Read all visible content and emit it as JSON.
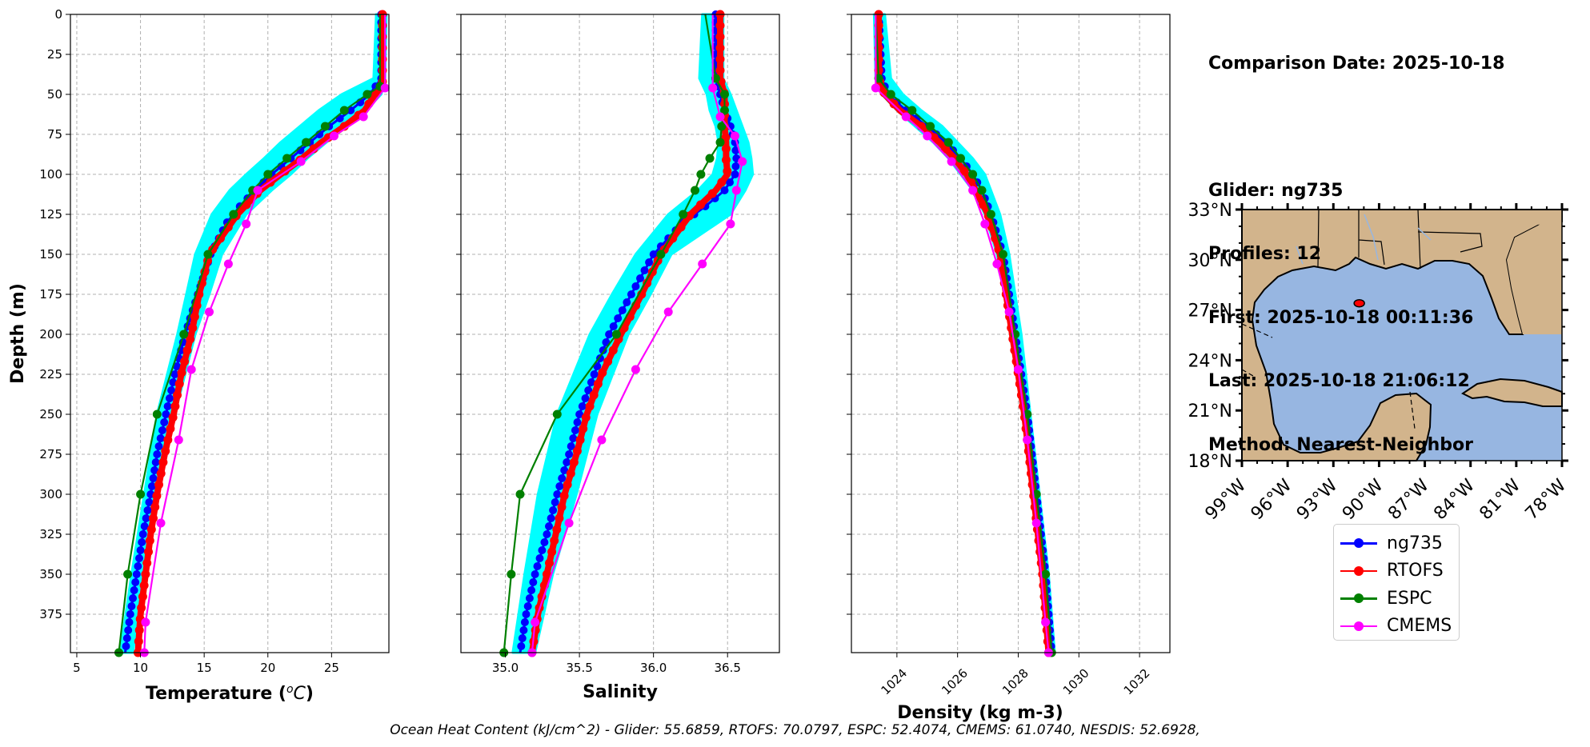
{
  "info": {
    "comparison_date": "Comparison Date: 2025-10-18",
    "glider": "Glider: ng735",
    "profiles": "Profiles: 12",
    "first": "First: 2025-10-18 00:11:36",
    "last": "Last: 2025-10-18 21:06:12",
    "method": "Method: Nearest-Neighbor"
  },
  "footer": "Ocean Heat Content (kJ/cm^2) - Glider: 55.6859,  RTOFS: 70.0797,  ESPC: 52.4074,  CMEMS: 61.0740,  NESDIS: 52.6928,",
  "legend": [
    {
      "name": "ng735",
      "color": "#0000ff"
    },
    {
      "name": "RTOFS",
      "color": "#ff0000"
    },
    {
      "name": "ESPC",
      "color": "#008000"
    },
    {
      "name": "CMEMS",
      "color": "#ff00ff"
    }
  ],
  "chart_data": [
    {
      "type": "line",
      "ylabel": "Depth (m)",
      "xlabel": "Temperature ($^oC$)",
      "xlabel_display": "Temperature (",
      "xlabel_unit": "oC",
      "xlim": [
        4.5,
        29.5
      ],
      "ylim": [
        399,
        0
      ],
      "xticks": [
        5,
        10,
        15,
        20,
        25
      ],
      "yticks": [
        0,
        25,
        50,
        75,
        100,
        125,
        150,
        175,
        200,
        225,
        250,
        275,
        300,
        325,
        350,
        375
      ],
      "grid": true,
      "series": [
        {
          "name": "ng735",
          "color": "#0000ff",
          "depth": [
            0,
            40,
            50,
            60,
            70,
            80,
            90,
            100,
            110,
            120,
            130,
            150,
            175,
            200,
            225,
            250,
            275,
            300,
            325,
            350,
            375,
            399
          ],
          "values": [
            28.9,
            28.9,
            28.0,
            26.5,
            24.8,
            23.3,
            21.8,
            20.3,
            19.0,
            17.8,
            16.8,
            15.5,
            14.5,
            13.5,
            12.7,
            12.0,
            11.3,
            10.8,
            10.2,
            9.7,
            9.2,
            8.8
          ]
        },
        {
          "name": "RTOFS",
          "color": "#ff0000",
          "depth": [
            0,
            45,
            50,
            60,
            70,
            80,
            90,
            100,
            110,
            125,
            150,
            175,
            200,
            225,
            250,
            275,
            300,
            325,
            350,
            375,
            399
          ],
          "values": [
            29.0,
            29.0,
            28.4,
            27.6,
            26.0,
            24.2,
            22.7,
            21.0,
            19.4,
            17.6,
            15.4,
            14.6,
            14.0,
            13.2,
            12.6,
            11.9,
            11.3,
            10.8,
            10.4,
            10.0,
            9.8
          ]
        },
        {
          "name": "ESPC",
          "color": "#008000",
          "depth": [
            0,
            45,
            50,
            60,
            70,
            80,
            90,
            100,
            110,
            125,
            150,
            200,
            250,
            300,
            350,
            399
          ],
          "values": [
            28.8,
            28.8,
            27.8,
            26.0,
            24.5,
            23.0,
            21.5,
            20.0,
            18.8,
            17.3,
            15.3,
            13.4,
            11.3,
            10.0,
            9.0,
            8.3
          ]
        },
        {
          "name": "CMEMS",
          "color": "#ff00ff",
          "depth": [
            0,
            46,
            64,
            76,
            92,
            110,
            131,
            156,
            186,
            222,
            266,
            318,
            380,
            399
          ],
          "values": [
            29.2,
            29.2,
            27.5,
            25.2,
            22.6,
            19.2,
            18.3,
            16.9,
            15.4,
            14.0,
            13.0,
            11.6,
            10.4,
            10.3
          ]
        }
      ],
      "glider_spread": {
        "color": "#00ffff",
        "depth": [
          0,
          40,
          50,
          60,
          70,
          80,
          90,
          100,
          110,
          125,
          150,
          175,
          200,
          250,
          300,
          350,
          399
        ],
        "lo": [
          28.5,
          28.3,
          25.8,
          24.0,
          22.5,
          21.0,
          19.7,
          18.3,
          17.0,
          15.6,
          14.3,
          13.6,
          12.9,
          11.3,
          10.3,
          9.3,
          8.4
        ],
        "hi": [
          29.3,
          29.2,
          28.9,
          27.7,
          26.2,
          24.6,
          23.1,
          21.8,
          20.3,
          18.3,
          16.4,
          15.4,
          14.3,
          12.7,
          11.4,
          10.3,
          9.4
        ]
      }
    },
    {
      "type": "line",
      "xlabel": "Salinity",
      "xlim": [
        34.7,
        36.85
      ],
      "ylim": [
        399,
        0
      ],
      "xticks": [
        35.0,
        35.5,
        36.0,
        36.5
      ],
      "xtick_labels": [
        "35.0",
        "35.5",
        "36.0",
        "36.5"
      ],
      "grid": true,
      "series": [
        {
          "name": "ng735",
          "color": "#0000ff",
          "depth": [
            0,
            40,
            50,
            60,
            70,
            80,
            90,
            100,
            110,
            120,
            130,
            150,
            175,
            200,
            225,
            250,
            275,
            300,
            325,
            350,
            375,
            399
          ],
          "values": [
            36.42,
            36.42,
            36.45,
            36.48,
            36.52,
            36.55,
            36.56,
            36.55,
            36.48,
            36.35,
            36.2,
            36.0,
            35.85,
            35.7,
            35.6,
            35.5,
            35.43,
            35.35,
            35.28,
            35.2,
            35.14,
            35.1
          ]
        },
        {
          "name": "RTOFS",
          "color": "#ff0000",
          "depth": [
            0,
            40,
            50,
            60,
            70,
            80,
            90,
            100,
            110,
            125,
            150,
            175,
            200,
            225,
            250,
            275,
            300,
            325,
            350,
            375,
            399
          ],
          "values": [
            36.45,
            36.45,
            36.48,
            36.48,
            36.48,
            36.49,
            36.49,
            36.5,
            36.42,
            36.25,
            36.05,
            35.92,
            35.78,
            35.65,
            35.55,
            35.48,
            35.4,
            35.34,
            35.28,
            35.22,
            35.18
          ]
        },
        {
          "name": "ESPC",
          "color": "#008000",
          "depth": [
            0,
            40,
            50,
            60,
            70,
            80,
            90,
            100,
            110,
            125,
            150,
            200,
            250,
            300,
            350,
            399
          ],
          "values": [
            36.35,
            36.42,
            36.48,
            36.48,
            36.46,
            36.45,
            36.38,
            36.32,
            36.28,
            36.2,
            36.05,
            35.75,
            35.35,
            35.1,
            35.04,
            34.99
          ]
        },
        {
          "name": "CMEMS",
          "color": "#ff00ff",
          "depth": [
            0,
            46,
            64,
            76,
            92,
            110,
            131,
            156,
            186,
            222,
            266,
            318,
            380,
            399
          ],
          "values": [
            36.4,
            36.4,
            36.45,
            36.55,
            36.6,
            36.56,
            36.52,
            36.33,
            36.1,
            35.88,
            35.65,
            35.43,
            35.2,
            35.18
          ]
        }
      ],
      "glider_spread": {
        "color": "#00ffff",
        "depth": [
          0,
          40,
          50,
          60,
          70,
          80,
          90,
          100,
          110,
          125,
          150,
          175,
          200,
          250,
          300,
          350,
          399
        ],
        "lo": [
          36.33,
          36.31,
          36.36,
          36.38,
          36.42,
          36.44,
          36.43,
          36.4,
          36.3,
          36.1,
          35.88,
          35.72,
          35.57,
          35.35,
          35.22,
          35.13,
          35.05
        ],
        "hi": [
          36.47,
          36.47,
          36.52,
          36.56,
          36.6,
          36.64,
          36.66,
          36.67,
          36.62,
          36.52,
          36.12,
          35.98,
          35.83,
          35.62,
          35.48,
          35.32,
          35.2
        ]
      }
    },
    {
      "type": "line",
      "xlabel": "Density (kg m-3)",
      "xlim": [
        1022.5,
        1033.0
      ],
      "ylim": [
        399,
        0
      ],
      "xticks": [
        1024,
        1026,
        1028,
        1030,
        1032
      ],
      "xtick_labels": [
        "1024",
        "1026",
        "1028",
        "1030",
        "1032"
      ],
      "grid": true,
      "series": [
        {
          "name": "ng735",
          "color": "#0000ff",
          "depth": [
            0,
            40,
            50,
            60,
            70,
            80,
            90,
            100,
            110,
            125,
            150,
            175,
            200,
            250,
            300,
            350,
            399
          ],
          "values": [
            1023.4,
            1023.5,
            1023.7,
            1024.3,
            1025.0,
            1025.6,
            1026.1,
            1026.5,
            1026.8,
            1027.1,
            1027.5,
            1027.7,
            1027.9,
            1028.3,
            1028.6,
            1028.9,
            1029.1
          ]
        },
        {
          "name": "RTOFS",
          "color": "#ff0000",
          "depth": [
            0,
            40,
            50,
            60,
            70,
            80,
            90,
            100,
            110,
            125,
            150,
            175,
            200,
            250,
            300,
            350,
            399
          ],
          "values": [
            1023.4,
            1023.4,
            1023.6,
            1024.1,
            1024.8,
            1025.4,
            1025.9,
            1026.3,
            1026.6,
            1027.0,
            1027.4,
            1027.6,
            1027.8,
            1028.2,
            1028.5,
            1028.8,
            1029.0
          ]
        },
        {
          "name": "ESPC",
          "color": "#008000",
          "depth": [
            0,
            40,
            50,
            60,
            70,
            80,
            90,
            100,
            110,
            125,
            150,
            200,
            250,
            300,
            350,
            399
          ],
          "values": [
            1023.3,
            1023.4,
            1023.8,
            1024.5,
            1025.1,
            1025.7,
            1026.1,
            1026.5,
            1026.8,
            1027.1,
            1027.5,
            1027.9,
            1028.3,
            1028.6,
            1028.9,
            1029.1
          ]
        },
        {
          "name": "CMEMS",
          "color": "#ff00ff",
          "depth": [
            0,
            46,
            64,
            76,
            92,
            110,
            131,
            156,
            186,
            222,
            266,
            318,
            380,
            399
          ],
          "values": [
            1023.3,
            1023.3,
            1024.3,
            1025.0,
            1025.8,
            1026.5,
            1026.9,
            1027.3,
            1027.7,
            1028.0,
            1028.3,
            1028.6,
            1028.9,
            1029.0
          ]
        }
      ],
      "glider_spread": {
        "color": "#00ffff",
        "depth": [
          0,
          40,
          50,
          60,
          70,
          80,
          90,
          100,
          110,
          125,
          150,
          175,
          200,
          250,
          300,
          350,
          399
        ],
        "lo": [
          1023.25,
          1023.3,
          1023.5,
          1024.0,
          1024.6,
          1025.2,
          1025.7,
          1026.1,
          1026.5,
          1026.9,
          1027.3,
          1027.6,
          1027.8,
          1028.2,
          1028.5,
          1028.8,
          1029.0
        ],
        "hi": [
          1023.6,
          1023.8,
          1024.2,
          1024.8,
          1025.5,
          1026.0,
          1026.5,
          1026.9,
          1027.1,
          1027.4,
          1027.7,
          1027.9,
          1028.1,
          1028.4,
          1028.7,
          1029.0,
          1029.2
        ]
      }
    },
    {
      "type": "map",
      "lon_range": [
        -99,
        -78
      ],
      "lat_range": [
        18,
        33
      ],
      "xtick_labels": [
        "99°W",
        "96°W",
        "93°W",
        "90°W",
        "87°W",
        "84°W",
        "81°W",
        "78°W"
      ],
      "ytick_labels": [
        "33°N",
        "30°N",
        "27°N",
        "24°N",
        "21°N",
        "18°N"
      ],
      "ocean_color": "#97b6e1",
      "land_color": "#d2b48c",
      "glider_location": {
        "lon": -91.3,
        "lat": 27.4,
        "color": "#ff0000"
      }
    }
  ]
}
